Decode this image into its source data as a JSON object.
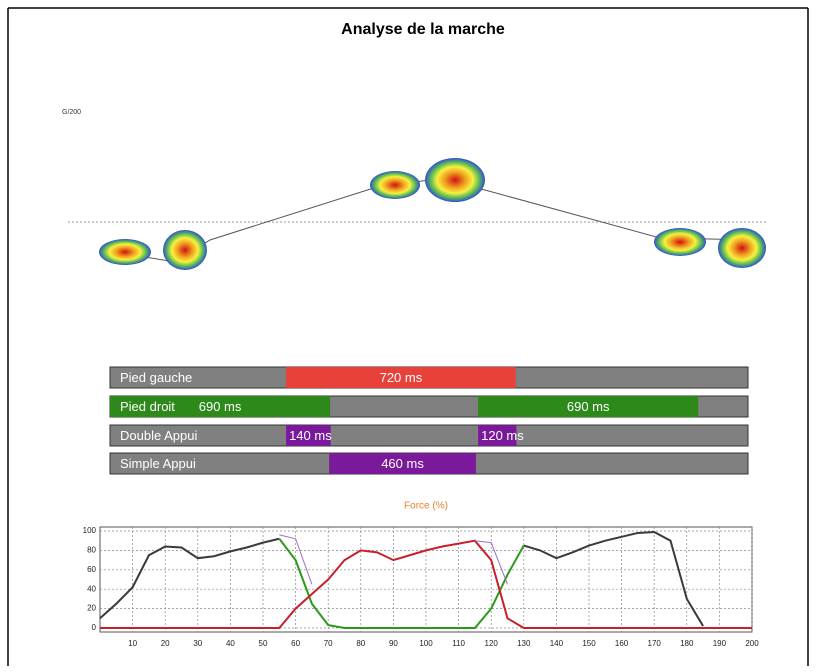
{
  "title": "Analyse de la marche",
  "footprint_label": "G/200",
  "timing": {
    "xlim": [
      0,
      2000
    ],
    "rows": [
      {
        "label": "Pied gauche",
        "color": "#e8413a",
        "segments": [
          {
            "start": 552,
            "value": 720,
            "value_label": "720 ms"
          }
        ]
      },
      {
        "label": "Pied droit",
        "color": "#2d8a1a",
        "segments": [
          {
            "start": 0,
            "value": 690,
            "value_label": "690 ms"
          },
          {
            "start": 1154,
            "value": 690,
            "value_label": "690 ms"
          }
        ]
      },
      {
        "label": "Double Appui",
        "color": "#7a1a9a",
        "segments": [
          {
            "start": 552,
            "value": 140,
            "value_label": "140 ms"
          },
          {
            "start": 1154,
            "value": 120,
            "value_label": "120 ms"
          }
        ]
      },
      {
        "label": "Simple Appui",
        "color": "#7a1a9a",
        "segments": [
          {
            "start": 687,
            "value": 460,
            "value_label": "460 ms"
          }
        ]
      }
    ]
  },
  "chart_data": {
    "type": "line",
    "title": "Force (%)",
    "title_color": "#e8822a",
    "x": [
      0,
      5,
      10,
      15,
      20,
      25,
      30,
      35,
      40,
      45,
      50,
      55,
      60,
      65,
      70,
      75,
      80,
      85,
      90,
      95,
      100,
      105,
      110,
      115,
      120,
      125,
      130,
      135,
      140,
      145,
      150,
      155,
      160,
      165,
      170,
      175,
      180,
      185,
      190,
      195,
      200
    ],
    "series": [
      {
        "color": "#3a3a3a",
        "values": [
          10,
          25,
          42,
          75,
          84,
          83,
          72,
          74,
          79,
          83,
          88,
          92,
          null,
          null,
          null,
          null,
          null,
          null,
          null,
          null,
          null,
          null,
          null,
          null,
          null,
          null,
          85,
          80,
          72,
          78,
          85,
          90,
          94,
          98,
          99,
          90,
          30,
          2,
          null,
          null,
          null
        ]
      },
      {
        "color": "#2a9a1a",
        "values": [
          null,
          null,
          null,
          null,
          null,
          null,
          null,
          null,
          null,
          null,
          null,
          92,
          70,
          25,
          3,
          0,
          0,
          0,
          0,
          0,
          0,
          0,
          0,
          0,
          20,
          55,
          85,
          null,
          null,
          null,
          null,
          null,
          null,
          null,
          null,
          null,
          null,
          null,
          null,
          null,
          null
        ]
      },
      {
        "color": "#c8202a",
        "values": [
          0,
          0,
          0,
          0,
          0,
          0,
          0,
          0,
          0,
          0,
          0,
          0,
          20,
          35,
          50,
          70,
          80,
          78,
          70,
          75,
          80,
          84,
          87,
          90,
          70,
          10,
          0,
          0,
          0,
          0,
          0,
          0,
          0,
          0,
          0,
          0,
          0,
          0,
          0,
          0,
          0
        ]
      },
      {
        "color": "#a070c0",
        "values": [
          null,
          null,
          null,
          null,
          null,
          null,
          null,
          null,
          null,
          null,
          null,
          96,
          92,
          45,
          null,
          null,
          null,
          null,
          null,
          null,
          null,
          null,
          null,
          90,
          88,
          45,
          null,
          null,
          null,
          null,
          null,
          null,
          null,
          null,
          null,
          null,
          null,
          null,
          null,
          null,
          null
        ]
      }
    ],
    "xlim": [
      0,
      200
    ],
    "xticks": [
      10,
      20,
      30,
      40,
      50,
      60,
      70,
      80,
      90,
      100,
      110,
      120,
      130,
      140,
      150,
      160,
      170,
      180,
      190,
      200
    ],
    "ylim": [
      0,
      100
    ],
    "yticks": [
      0,
      20,
      40,
      60,
      80,
      100
    ],
    "grid": true
  }
}
